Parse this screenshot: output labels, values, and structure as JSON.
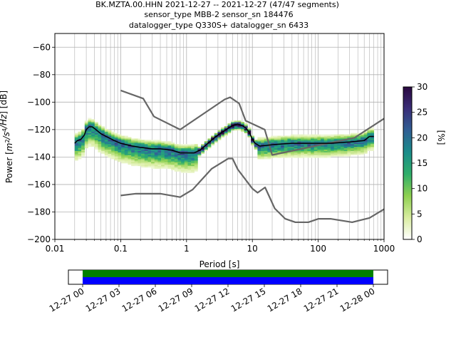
{
  "title": {
    "line1": "BK.MZTA.00.HHN   2021-12-27 -- 2021-12-27  (47/47 segments)",
    "line2": "sensor_type MBB-2 sensor_sn 184476",
    "line3": "datalogger_type Q330S+ datalogger_sn 6433"
  },
  "chart_data": [
    {
      "type": "heatmap",
      "title": "BK.MZTA.00.HHN   2021-12-27 -- 2021-12-27  (47/47 segments)",
      "xlabel": "Period [s]",
      "ylabel": "Power [m²/s⁴/Hz] [dB]",
      "x_scale": "log",
      "xlim": [
        0.01,
        1000
      ],
      "ylim": [
        -200,
        -50
      ],
      "x_ticks": [
        0.01,
        0.1,
        1,
        10,
        100,
        1000
      ],
      "x_tick_labels": [
        "0.01",
        "0.1",
        "1",
        "10",
        "100",
        "1000"
      ],
      "y_ticks": [
        -200,
        -180,
        -160,
        -140,
        -120,
        -100,
        -80,
        -60
      ],
      "y_tick_labels": [
        "−200",
        "−180",
        "−160",
        "−140",
        "−120",
        "−100",
        "−80",
        "−60"
      ],
      "grid": true,
      "colorbar": {
        "label": "[%]",
        "range": [
          0,
          30
        ],
        "ticks": [
          0,
          5,
          10,
          15,
          20,
          25,
          30
        ],
        "tick_labels": [
          "0",
          "5",
          "10",
          "15",
          "20",
          "25",
          "30"
        ],
        "colors": [
          "#ffffff",
          "#d9eda0",
          "#8ed050",
          "#2fae6a",
          "#1a8c8a",
          "#305f94",
          "#3a2e78",
          "#2a0840"
        ]
      },
      "series": [
        {
          "role": "noise-model-high",
          "color": "#666666",
          "points": [
            [
              0.1,
              -91.5
            ],
            [
              0.22,
              -97.4
            ],
            [
              0.32,
              -110.5
            ],
            [
              0.8,
              -120.0
            ],
            [
              3.8,
              -98.0
            ],
            [
              4.6,
              -96.5
            ],
            [
              6.3,
              -101.0
            ],
            [
              7.9,
              -113.5
            ],
            [
              15.4,
              -120.0
            ],
            [
              20.0,
              -138.5
            ],
            [
              354.8,
              -126.0
            ],
            [
              1000,
              -112.0
            ]
          ]
        },
        {
          "role": "noise-model-low",
          "color": "#666666",
          "points": [
            [
              0.1,
              -168.0
            ],
            [
              0.17,
              -166.7
            ],
            [
              0.4,
              -166.7
            ],
            [
              0.8,
              -169.2
            ],
            [
              1.24,
              -163.7
            ],
            [
              2.4,
              -148.6
            ],
            [
              4.3,
              -141.1
            ],
            [
              5.0,
              -141.1
            ],
            [
              6.0,
              -149.0
            ],
            [
              10.0,
              -163.0
            ],
            [
              12.0,
              -166.0
            ],
            [
              15.6,
              -162.1
            ],
            [
              21.9,
              -177.5
            ],
            [
              31.6,
              -185.0
            ],
            [
              45.0,
              -187.5
            ],
            [
              70.8,
              -187.5
            ],
            [
              101,
              -185.0
            ],
            [
              154,
              -185.0
            ],
            [
              328,
              -187.5
            ],
            [
              600,
              -184.4
            ],
            [
              1000,
              -178.0
            ]
          ]
        },
        {
          "role": "mode",
          "color": "#000000",
          "points": [
            [
              0.02,
              -130
            ],
            [
              0.022,
              -128
            ],
            [
              0.025,
              -127
            ],
            [
              0.028,
              -124
            ],
            [
              0.03,
              -120
            ],
            [
              0.033,
              -118
            ],
            [
              0.037,
              -118
            ],
            [
              0.042,
              -120
            ],
            [
              0.05,
              -123
            ],
            [
              0.06,
              -125
            ],
            [
              0.08,
              -128
            ],
            [
              0.1,
              -130
            ],
            [
              0.15,
              -132
            ],
            [
              0.2,
              -133
            ],
            [
              0.3,
              -134
            ],
            [
              0.4,
              -134
            ],
            [
              0.6,
              -135
            ],
            [
              0.8,
              -137
            ],
            [
              1.0,
              -137
            ],
            [
              1.3,
              -137
            ],
            [
              1.6,
              -135
            ],
            [
              2.0,
              -131
            ],
            [
              2.5,
              -127
            ],
            [
              3.0,
              -124
            ],
            [
              4.0,
              -120
            ],
            [
              5.0,
              -117
            ],
            [
              6.0,
              -116
            ],
            [
              7.0,
              -117
            ],
            [
              8.0,
              -119
            ],
            [
              9.0,
              -122
            ],
            [
              10.0,
              -127
            ],
            [
              11.0,
              -130
            ],
            [
              13.0,
              -132
            ],
            [
              20.0,
              -131
            ],
            [
              40.0,
              -130
            ],
            [
              80.0,
              -130
            ],
            [
              150,
              -130
            ],
            [
              300,
              -129
            ],
            [
              500,
              -128
            ],
            [
              600,
              -125
            ],
            [
              700,
              -125
            ]
          ]
        }
      ],
      "time_axis": {
        "tick_labels": [
          "12-27 00",
          "12-27 03",
          "12-27 06",
          "12-27 09",
          "12-27 12",
          "12-27 15",
          "12-27 18",
          "12-27 21",
          "12-28 00"
        ],
        "coverage_bars": [
          {
            "color": "#008000",
            "start": "12-27 00",
            "end": "12-28 00"
          },
          {
            "color": "#0000ff",
            "start": "12-27 00",
            "end": "12-28 00"
          }
        ]
      }
    }
  ]
}
